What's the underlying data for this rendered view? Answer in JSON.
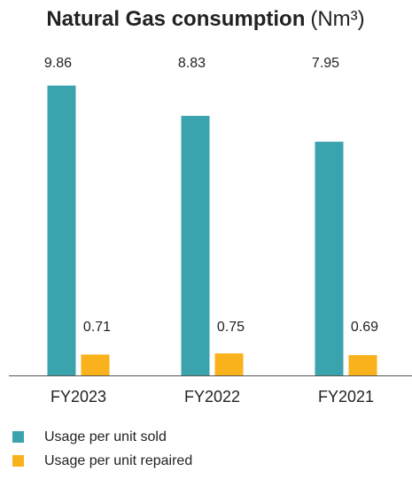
{
  "chart_data": {
    "type": "bar",
    "title": "Natural Gas consumption",
    "title_unit": "(Nm³)",
    "categories": [
      "FY2023",
      "FY2022",
      "FY2021"
    ],
    "series": [
      {
        "name": "Usage per unit sold",
        "color": "#3ba3ae",
        "values": [
          9.86,
          8.83,
          7.95
        ]
      },
      {
        "name": "Usage per unit repaired",
        "color": "#f9b21b",
        "values": [
          0.71,
          0.75,
          0.69
        ]
      }
    ]
  }
}
